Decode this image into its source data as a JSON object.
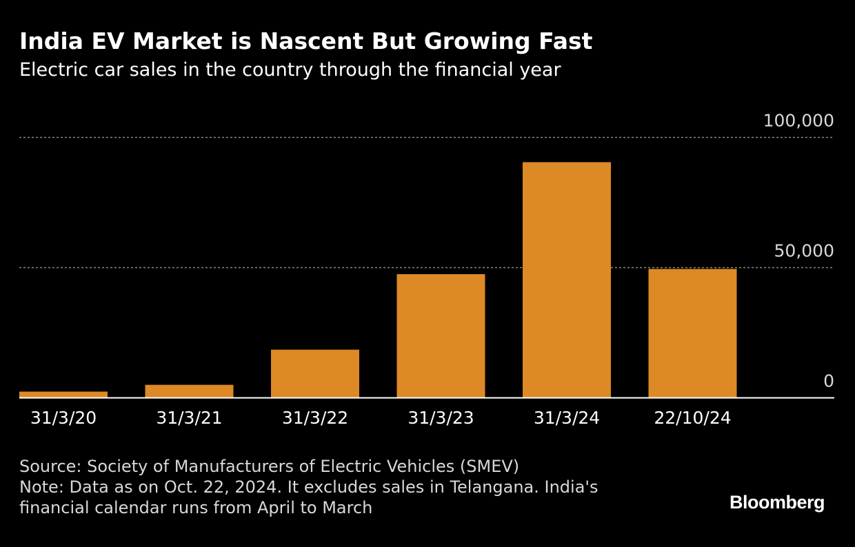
{
  "header": {
    "title": "India EV Market is Nascent But Growing Fast",
    "subtitle": "Electric car sales in the country through the financial year"
  },
  "chart_data": {
    "type": "bar",
    "title": "India EV Market is Nascent But Growing Fast",
    "subtitle": "Electric car sales in the country through the financial year",
    "categories": [
      "31/3/20",
      "31/3/21",
      "31/3/22",
      "31/3/23",
      "31/3/24",
      "22/10/24"
    ],
    "values": [
      2400,
      5000,
      18500,
      47500,
      90500,
      49500
    ],
    "yticks": [
      0,
      50000,
      100000
    ],
    "ytick_labels": [
      "0",
      "50,000",
      "100,000"
    ],
    "ylim": [
      0,
      100000
    ],
    "xlabel": "",
    "ylabel": "",
    "grid": true,
    "y_axis_side": "right",
    "bar_color": "#dd8925",
    "gridline_color": "#8a8a8a",
    "baseline_color": "#ffffff"
  },
  "footer": {
    "source": "Source: Society of Manufacturers of Electric Vehicles (SMEV)",
    "note_line1": "Note: Data as on Oct. 22, 2024. It excludes sales in Telangana. India's",
    "note_line2": "financial calendar runs from April to March",
    "brand": "Bloomberg"
  },
  "colors": {
    "background": "#000000",
    "text": "#ffffff",
    "footer_text": "#d8d8d8"
  }
}
